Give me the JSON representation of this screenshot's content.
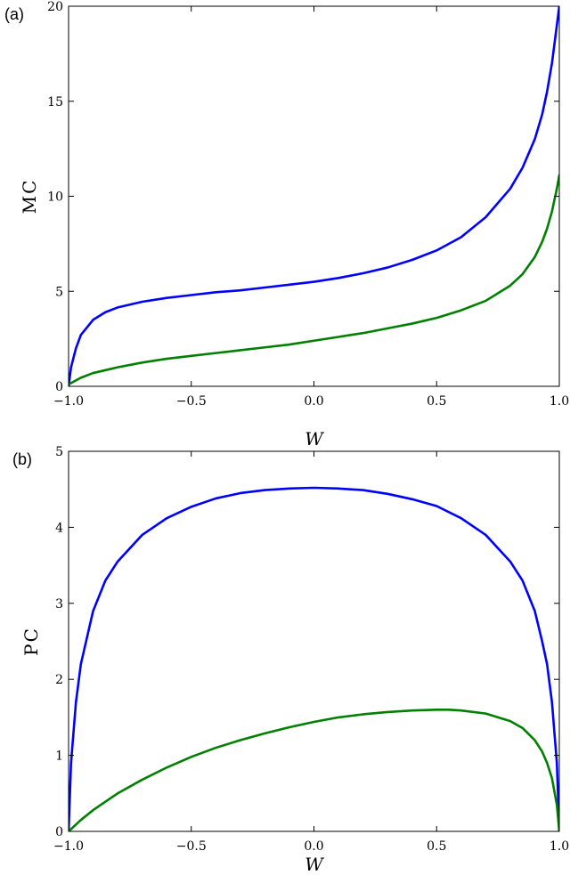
{
  "chart_data": [
    {
      "type": "line",
      "panel_label": "(a)",
      "xlabel": "W",
      "ylabel": "MC",
      "xlim": [
        -1.0,
        1.0
      ],
      "ylim": [
        0,
        20
      ],
      "xticks": [
        -1.0,
        -0.5,
        0.0,
        0.5,
        1.0
      ],
      "xtick_labels": [
        "−1.0",
        "−0.5",
        "0.0",
        "0.5",
        "1.0"
      ],
      "yticks": [
        0,
        5,
        10,
        15,
        20
      ],
      "ytick_labels": [
        "0",
        "5",
        "10",
        "15",
        "20"
      ],
      "grid": false,
      "series": [
        {
          "color": "#0000ff",
          "x": [
            -1.0,
            -0.99,
            -0.97,
            -0.95,
            -0.9,
            -0.85,
            -0.8,
            -0.7,
            -0.6,
            -0.5,
            -0.4,
            -0.3,
            -0.2,
            -0.1,
            0.0,
            0.1,
            0.2,
            0.3,
            0.4,
            0.5,
            0.6,
            0.7,
            0.8,
            0.85,
            0.9,
            0.93,
            0.95,
            0.97,
            0.99,
            1.0
          ],
          "y": [
            0.0,
            1.0,
            2.0,
            2.7,
            3.5,
            3.9,
            4.15,
            4.45,
            4.65,
            4.8,
            4.95,
            5.05,
            5.2,
            5.35,
            5.5,
            5.7,
            5.95,
            6.25,
            6.65,
            7.15,
            7.85,
            8.9,
            10.4,
            11.5,
            13.0,
            14.3,
            15.5,
            17.0,
            19.0,
            20.0
          ]
        },
        {
          "color": "#008000",
          "x": [
            -1.0,
            -0.95,
            -0.9,
            -0.8,
            -0.7,
            -0.6,
            -0.5,
            -0.4,
            -0.3,
            -0.2,
            -0.1,
            0.0,
            0.1,
            0.2,
            0.3,
            0.4,
            0.5,
            0.6,
            0.7,
            0.8,
            0.85,
            0.9,
            0.93,
            0.95,
            0.97,
            0.99,
            1.0
          ],
          "y": [
            0.1,
            0.45,
            0.7,
            1.0,
            1.25,
            1.45,
            1.6,
            1.75,
            1.9,
            2.05,
            2.2,
            2.4,
            2.6,
            2.8,
            3.05,
            3.3,
            3.6,
            4.0,
            4.5,
            5.3,
            5.9,
            6.8,
            7.6,
            8.3,
            9.2,
            10.4,
            11.1
          ]
        }
      ]
    },
    {
      "type": "line",
      "panel_label": "(b)",
      "xlabel": "W",
      "ylabel": "PC",
      "xlim": [
        -1.0,
        1.0
      ],
      "ylim": [
        0,
        5
      ],
      "xticks": [
        -1.0,
        -0.5,
        0.0,
        0.5,
        1.0
      ],
      "xtick_labels": [
        "−1.0",
        "−0.5",
        "0.0",
        "0.5",
        "1.0"
      ],
      "yticks": [
        0,
        1,
        2,
        3,
        4,
        5
      ],
      "ytick_labels": [
        "0",
        "1",
        "2",
        "3",
        "4",
        "5"
      ],
      "grid": false,
      "series": [
        {
          "color": "#0000ff",
          "x": [
            -1.0,
            -0.99,
            -0.97,
            -0.95,
            -0.9,
            -0.85,
            -0.8,
            -0.7,
            -0.6,
            -0.5,
            -0.4,
            -0.3,
            -0.2,
            -0.1,
            0.0,
            0.1,
            0.2,
            0.3,
            0.4,
            0.5,
            0.6,
            0.7,
            0.8,
            0.85,
            0.9,
            0.93,
            0.95,
            0.97,
            0.99,
            1.0
          ],
          "y": [
            0.0,
            0.9,
            1.7,
            2.2,
            2.9,
            3.3,
            3.55,
            3.9,
            4.12,
            4.27,
            4.38,
            4.45,
            4.49,
            4.51,
            4.52,
            4.51,
            4.49,
            4.44,
            4.37,
            4.28,
            4.12,
            3.9,
            3.55,
            3.3,
            2.9,
            2.5,
            2.2,
            1.7,
            0.9,
            0.0
          ]
        },
        {
          "color": "#008000",
          "x": [
            -1.0,
            -0.95,
            -0.9,
            -0.8,
            -0.7,
            -0.6,
            -0.5,
            -0.4,
            -0.3,
            -0.2,
            -0.1,
            0.0,
            0.1,
            0.2,
            0.3,
            0.4,
            0.5,
            0.55,
            0.6,
            0.7,
            0.8,
            0.85,
            0.9,
            0.93,
            0.95,
            0.97,
            0.99,
            1.0
          ],
          "y": [
            0.0,
            0.15,
            0.28,
            0.5,
            0.68,
            0.84,
            0.98,
            1.1,
            1.2,
            1.29,
            1.37,
            1.44,
            1.5,
            1.54,
            1.57,
            1.59,
            1.6,
            1.6,
            1.59,
            1.55,
            1.45,
            1.36,
            1.2,
            1.05,
            0.9,
            0.7,
            0.35,
            0.0
          ]
        }
      ]
    }
  ]
}
